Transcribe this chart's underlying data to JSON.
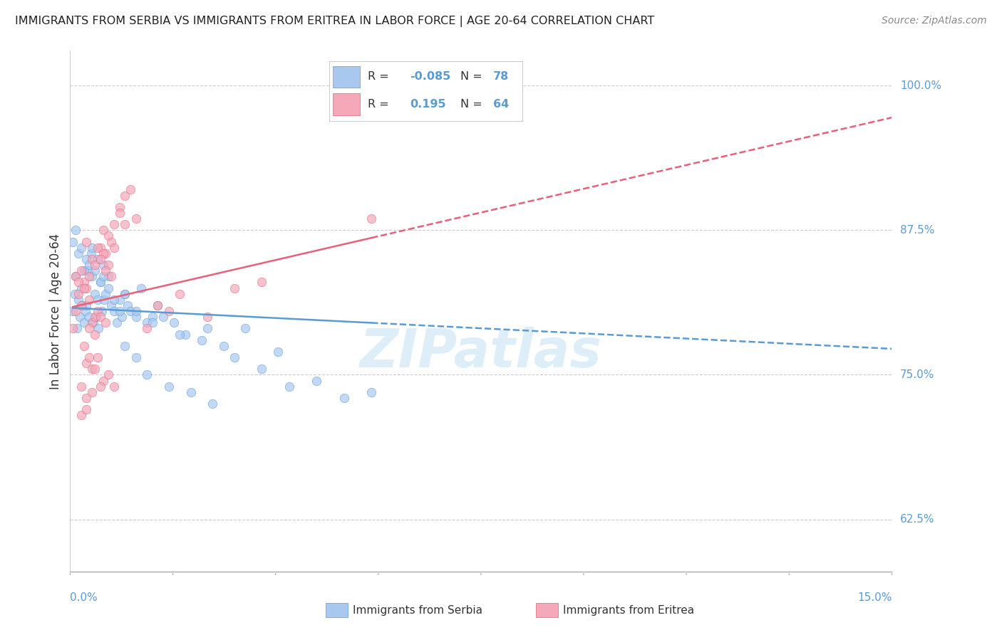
{
  "title": "IMMIGRANTS FROM SERBIA VS IMMIGRANTS FROM ERITREA IN LABOR FORCE | AGE 20-64 CORRELATION CHART",
  "source": "Source: ZipAtlas.com",
  "serbia_R": -0.085,
  "serbia_N": 78,
  "eritrea_R": 0.195,
  "eritrea_N": 64,
  "serbia_color": "#a8c8f0",
  "eritrea_color": "#f4a8b8",
  "serbia_line_color": "#5b9bd5",
  "eritrea_line_color": "#e8607a",
  "watermark": "ZIPatlas",
  "xmin": 0.0,
  "xmax": 15.0,
  "ymin": 58.0,
  "ymax": 103.0,
  "serbia_scatter_x": [
    0.05,
    0.08,
    0.1,
    0.12,
    0.15,
    0.18,
    0.2,
    0.22,
    0.25,
    0.28,
    0.3,
    0.32,
    0.35,
    0.38,
    0.4,
    0.42,
    0.45,
    0.48,
    0.5,
    0.52,
    0.55,
    0.58,
    0.6,
    0.62,
    0.65,
    0.7,
    0.75,
    0.8,
    0.85,
    0.9,
    0.95,
    1.0,
    1.05,
    1.1,
    1.2,
    1.3,
    1.4,
    1.5,
    1.6,
    1.7,
    1.9,
    2.1,
    2.4,
    2.8,
    3.2,
    3.8,
    4.5,
    5.5,
    0.05,
    0.1,
    0.15,
    0.2,
    0.25,
    0.3,
    0.35,
    0.4,
    0.45,
    0.5,
    0.55,
    0.6,
    0.7,
    0.8,
    0.9,
    1.0,
    1.2,
    1.5,
    2.0,
    2.5,
    1.0,
    1.2,
    1.4,
    1.8,
    2.2,
    2.6,
    3.0,
    3.5,
    4.0,
    5.0
  ],
  "serbia_scatter_y": [
    80.5,
    82.0,
    83.5,
    79.0,
    81.5,
    80.0,
    82.5,
    81.0,
    79.5,
    80.5,
    81.0,
    84.0,
    80.0,
    85.5,
    86.0,
    79.5,
    82.0,
    80.0,
    81.5,
    79.0,
    83.0,
    80.5,
    84.5,
    81.5,
    82.0,
    83.5,
    81.0,
    80.5,
    79.5,
    81.5,
    80.0,
    82.0,
    81.0,
    80.5,
    80.0,
    82.5,
    79.5,
    80.0,
    81.0,
    80.0,
    79.5,
    78.5,
    78.0,
    77.5,
    79.0,
    77.0,
    74.5,
    73.5,
    86.5,
    87.5,
    85.5,
    86.0,
    84.0,
    85.0,
    84.5,
    83.5,
    84.0,
    85.0,
    83.0,
    83.5,
    82.5,
    81.5,
    80.5,
    82.0,
    80.5,
    79.5,
    78.5,
    79.0,
    77.5,
    76.5,
    75.0,
    74.0,
    73.5,
    72.5,
    76.5,
    75.5,
    74.0,
    73.0
  ],
  "eritrea_scatter_x": [
    0.05,
    0.1,
    0.15,
    0.2,
    0.25,
    0.3,
    0.35,
    0.4,
    0.45,
    0.5,
    0.55,
    0.6,
    0.65,
    0.7,
    0.75,
    0.8,
    0.9,
    1.0,
    1.1,
    1.2,
    1.4,
    1.6,
    1.8,
    2.0,
    2.5,
    3.0,
    0.1,
    0.2,
    0.3,
    0.4,
    0.5,
    0.6,
    0.7,
    0.8,
    0.9,
    1.0,
    0.15,
    0.25,
    0.35,
    0.45,
    0.55,
    0.65,
    0.75,
    0.3,
    0.4,
    0.5,
    0.6,
    0.7,
    0.8,
    0.35,
    0.45,
    0.55,
    0.65,
    0.2,
    0.3,
    0.4,
    0.2,
    0.3,
    5.5,
    3.5,
    0.25,
    0.35,
    0.45,
    0.55
  ],
  "eritrea_scatter_y": [
    79.0,
    80.5,
    82.0,
    81.0,
    83.0,
    82.5,
    81.5,
    79.5,
    80.0,
    80.5,
    86.0,
    87.5,
    85.5,
    87.0,
    86.5,
    88.0,
    89.5,
    90.5,
    91.0,
    88.5,
    79.0,
    81.0,
    80.5,
    82.0,
    80.0,
    82.5,
    83.5,
    84.0,
    86.5,
    85.0,
    86.0,
    85.5,
    84.5,
    86.0,
    89.0,
    88.0,
    83.0,
    82.5,
    83.5,
    84.5,
    85.0,
    84.0,
    83.5,
    76.0,
    75.5,
    76.5,
    74.5,
    75.0,
    74.0,
    79.0,
    78.5,
    80.0,
    79.5,
    71.5,
    72.0,
    73.5,
    74.0,
    73.0,
    88.5,
    83.0,
    77.5,
    76.5,
    75.5,
    74.0
  ]
}
